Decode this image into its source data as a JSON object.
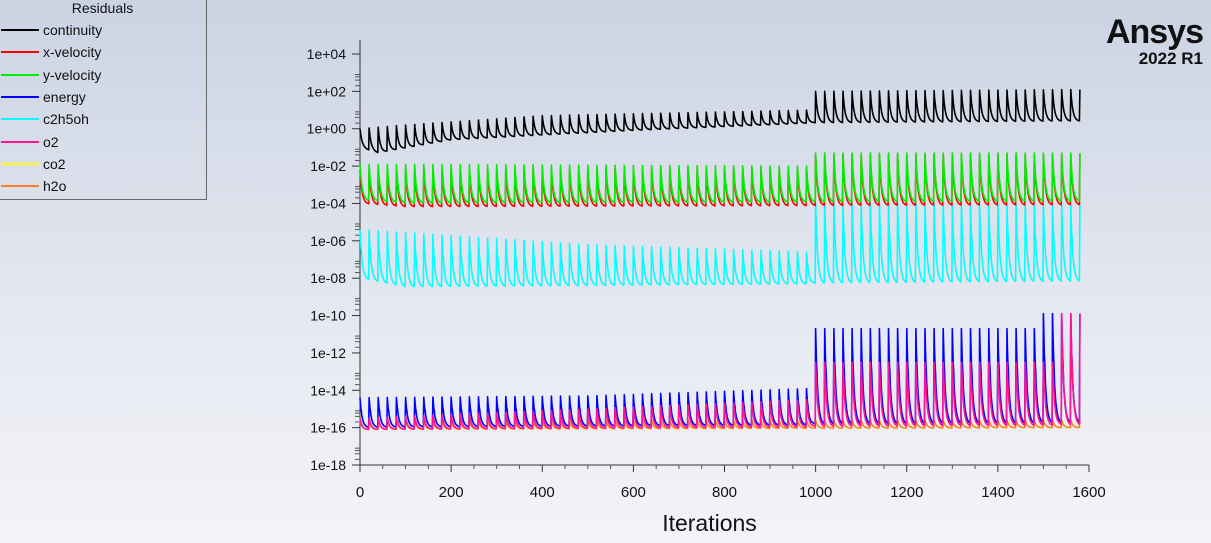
{
  "chart_data": {
    "type": "line",
    "title": "Residuals",
    "xlabel": "Iterations",
    "ylabel": "",
    "xlim": [
      0,
      1600
    ],
    "ylim": [
      1e-18,
      10000.0
    ],
    "yscale": "log",
    "xticks": [
      "0",
      "200",
      "400",
      "600",
      "800",
      "1000",
      "1200",
      "1400",
      "1600"
    ],
    "yticks": [
      "1e+04",
      "1e+02",
      "1e+00",
      "1e-02",
      "1e-04",
      "1e-06",
      "1e-08",
      "1e-10",
      "1e-12",
      "1e-14",
      "1e-16",
      "1e-18"
    ],
    "legend_placement": "top-left",
    "last_iteration": 1580,
    "oscillation_period_iterations": 20,
    "series": [
      {
        "name": "continuity",
        "color": "#000000",
        "log10_peaks": [
          [
            0,
            0
          ],
          [
            100,
            0.2
          ],
          [
            400,
            0.7
          ],
          [
            990,
            1.0
          ],
          [
            1000,
            2.0
          ],
          [
            1580,
            2.1
          ]
        ],
        "log10_troughs": [
          [
            0,
            -1.0
          ],
          [
            40,
            -1.3
          ],
          [
            200,
            -0.6
          ],
          [
            600,
            -0.1
          ],
          [
            990,
            0.3
          ],
          [
            1000,
            0.3
          ],
          [
            1580,
            0.4
          ]
        ]
      },
      {
        "name": "x-velocity",
        "color": "#ff0000",
        "log10_peaks": [
          [
            0,
            -2.2
          ],
          [
            990,
            -2.1
          ],
          [
            1000,
            -1.4
          ],
          [
            1580,
            -1.4
          ]
        ],
        "log10_troughs": [
          [
            0,
            -4.0
          ],
          [
            100,
            -4.2
          ],
          [
            1580,
            -4.1
          ]
        ]
      },
      {
        "name": "y-velocity",
        "color": "#00ee00",
        "log10_peaks": [
          [
            0,
            -1.9
          ],
          [
            990,
            -2.0
          ],
          [
            1000,
            -1.3
          ],
          [
            1580,
            -1.3
          ]
        ],
        "log10_troughs": [
          [
            0,
            -3.8
          ],
          [
            100,
            -4.0
          ],
          [
            1580,
            -3.9
          ]
        ]
      },
      {
        "name": "energy",
        "color": "#0000ff",
        "log10_peaks": [
          [
            0,
            -14.4
          ],
          [
            500,
            -14.3
          ],
          [
            990,
            -13.9
          ],
          [
            1000,
            -10.7
          ],
          [
            1490,
            -10.7
          ],
          [
            1500,
            -9.9
          ],
          [
            1580,
            -9.9
          ]
        ],
        "log10_troughs": [
          [
            0,
            -16
          ],
          [
            1580,
            -15.8
          ]
        ]
      },
      {
        "name": "c2h5oh",
        "color": "#00ffff",
        "log10_peaks": [
          [
            0,
            -5.4
          ],
          [
            500,
            -6.2
          ],
          [
            990,
            -6.6
          ],
          [
            1000,
            -4.0
          ],
          [
            1580,
            -4.1
          ]
        ],
        "log10_troughs": [
          [
            0,
            -8.0
          ],
          [
            100,
            -8.5
          ],
          [
            1580,
            -8.2
          ]
        ]
      },
      {
        "name": "o2",
        "color": "#ff1493",
        "log10_peaks": [
          [
            0,
            -15.5
          ],
          [
            500,
            -15.0
          ],
          [
            990,
            -14.5
          ],
          [
            1000,
            -12.5
          ],
          [
            1530,
            -12.5
          ],
          [
            1540,
            -9.9
          ],
          [
            1580,
            -9.9
          ]
        ],
        "log10_troughs": [
          [
            0,
            -16.1
          ],
          [
            1580,
            -15.9
          ]
        ]
      },
      {
        "name": "co2",
        "color": "#ffff00",
        "log10_peaks": [
          [
            0,
            -15.6
          ],
          [
            1580,
            -15.6
          ]
        ],
        "log10_troughs": [
          [
            0,
            -16.1
          ],
          [
            1580,
            -16.0
          ]
        ]
      },
      {
        "name": "h2o",
        "color": "#ff7f27",
        "log10_peaks": [
          [
            0,
            -15.6
          ],
          [
            1580,
            -15.6
          ]
        ],
        "log10_troughs": [
          [
            0,
            -16.1
          ],
          [
            1580,
            -16.0
          ]
        ]
      }
    ]
  },
  "logo": {
    "brand": "Ansys",
    "version": "2022 R1"
  }
}
